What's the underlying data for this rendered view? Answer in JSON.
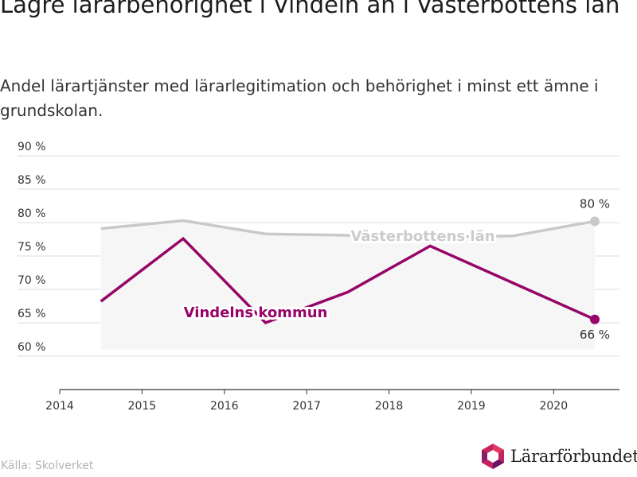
{
  "title": "Lägre lärarbehörighet i Vindeln än i Västerbottens län",
  "subtitle": "Andel lärartjänster med lärarlegitimation och behörighet i minst ett ämne i grundskolan.",
  "source": "Källa: Skolverket",
  "logo": {
    "text": "Lärarförbundet",
    "icon": "hexagon-logo-icon"
  },
  "chart_data": {
    "type": "line",
    "title": "Lägre lärarbehörighet i Vindeln än i Västerbottens län",
    "subtitle": "Andel lärartjänster med lärarlegitimation och behörighet i minst ett ämne i grundskolan.",
    "x": [
      2014.5,
      2015.5,
      2016.5,
      2017.5,
      2018.5,
      2019.5,
      2020.5
    ],
    "xticks": [
      2014,
      2015,
      2016,
      2017,
      2018,
      2019,
      2020
    ],
    "xtick_labels": [
      "2014",
      "2015",
      "2016",
      "2017",
      "2018",
      "2019",
      "2020"
    ],
    "xlim": [
      2014,
      2020.8
    ],
    "yticks": [
      60,
      65,
      70,
      75,
      80,
      85,
      90
    ],
    "ytick_labels": [
      "60 %",
      "65 %",
      "70 %",
      "75 %",
      "80 %",
      "85 %",
      "90 %"
    ],
    "ylim": [
      55,
      90
    ],
    "grid": true,
    "series": [
      {
        "name": "Västerbottens län",
        "color": "#c9c9c9",
        "values": [
          79.1,
          80.3,
          78.3,
          78.1,
          77.8,
          78.0,
          80.2
        ],
        "end_label": "80 %"
      },
      {
        "name": "Vindelns kommun",
        "color": "#960567",
        "values": [
          68.2,
          77.6,
          65.0,
          69.6,
          76.5,
          71.0,
          65.5
        ],
        "end_label": "66 %"
      }
    ],
    "area_color": "#f6f6f6"
  }
}
